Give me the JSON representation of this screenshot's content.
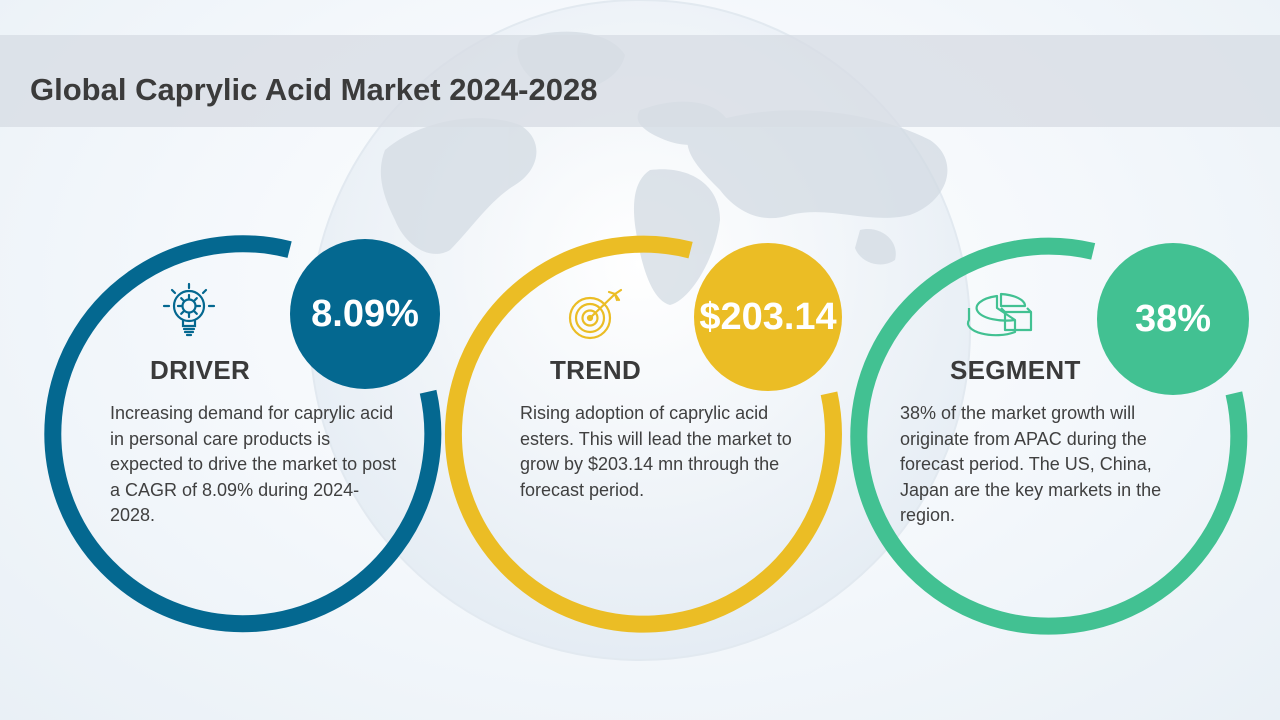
{
  "title": "Global Caprylic Acid Market 2024-2028",
  "colors": {
    "driver": "#046890",
    "trend": "#ebbd25",
    "segment": "#42c192",
    "title_band": "#d7dde4",
    "text": "#404040"
  },
  "cards": [
    {
      "key": "driver",
      "badge": "8.09%",
      "heading": "DRIVER",
      "icon": "lightbulb-gear-icon",
      "text": "Increasing demand for caprylic acid in personal care products is expected to drive the market to post a CAGR of 8.09% during 2024-2028."
    },
    {
      "key": "trend",
      "badge": "$203.14",
      "heading": "TREND",
      "icon": "target-arrow-icon",
      "text": "Rising adoption of caprylic acid esters. This will lead the market to grow by $203.14 mn through the forecast period."
    },
    {
      "key": "segment",
      "badge": "38%",
      "heading": "SEGMENT",
      "icon": "pie-chart-icon",
      "text": "38% of the market growth will originate from APAC during the forecast period. The US, China, Japan are the key markets in the region."
    }
  ]
}
